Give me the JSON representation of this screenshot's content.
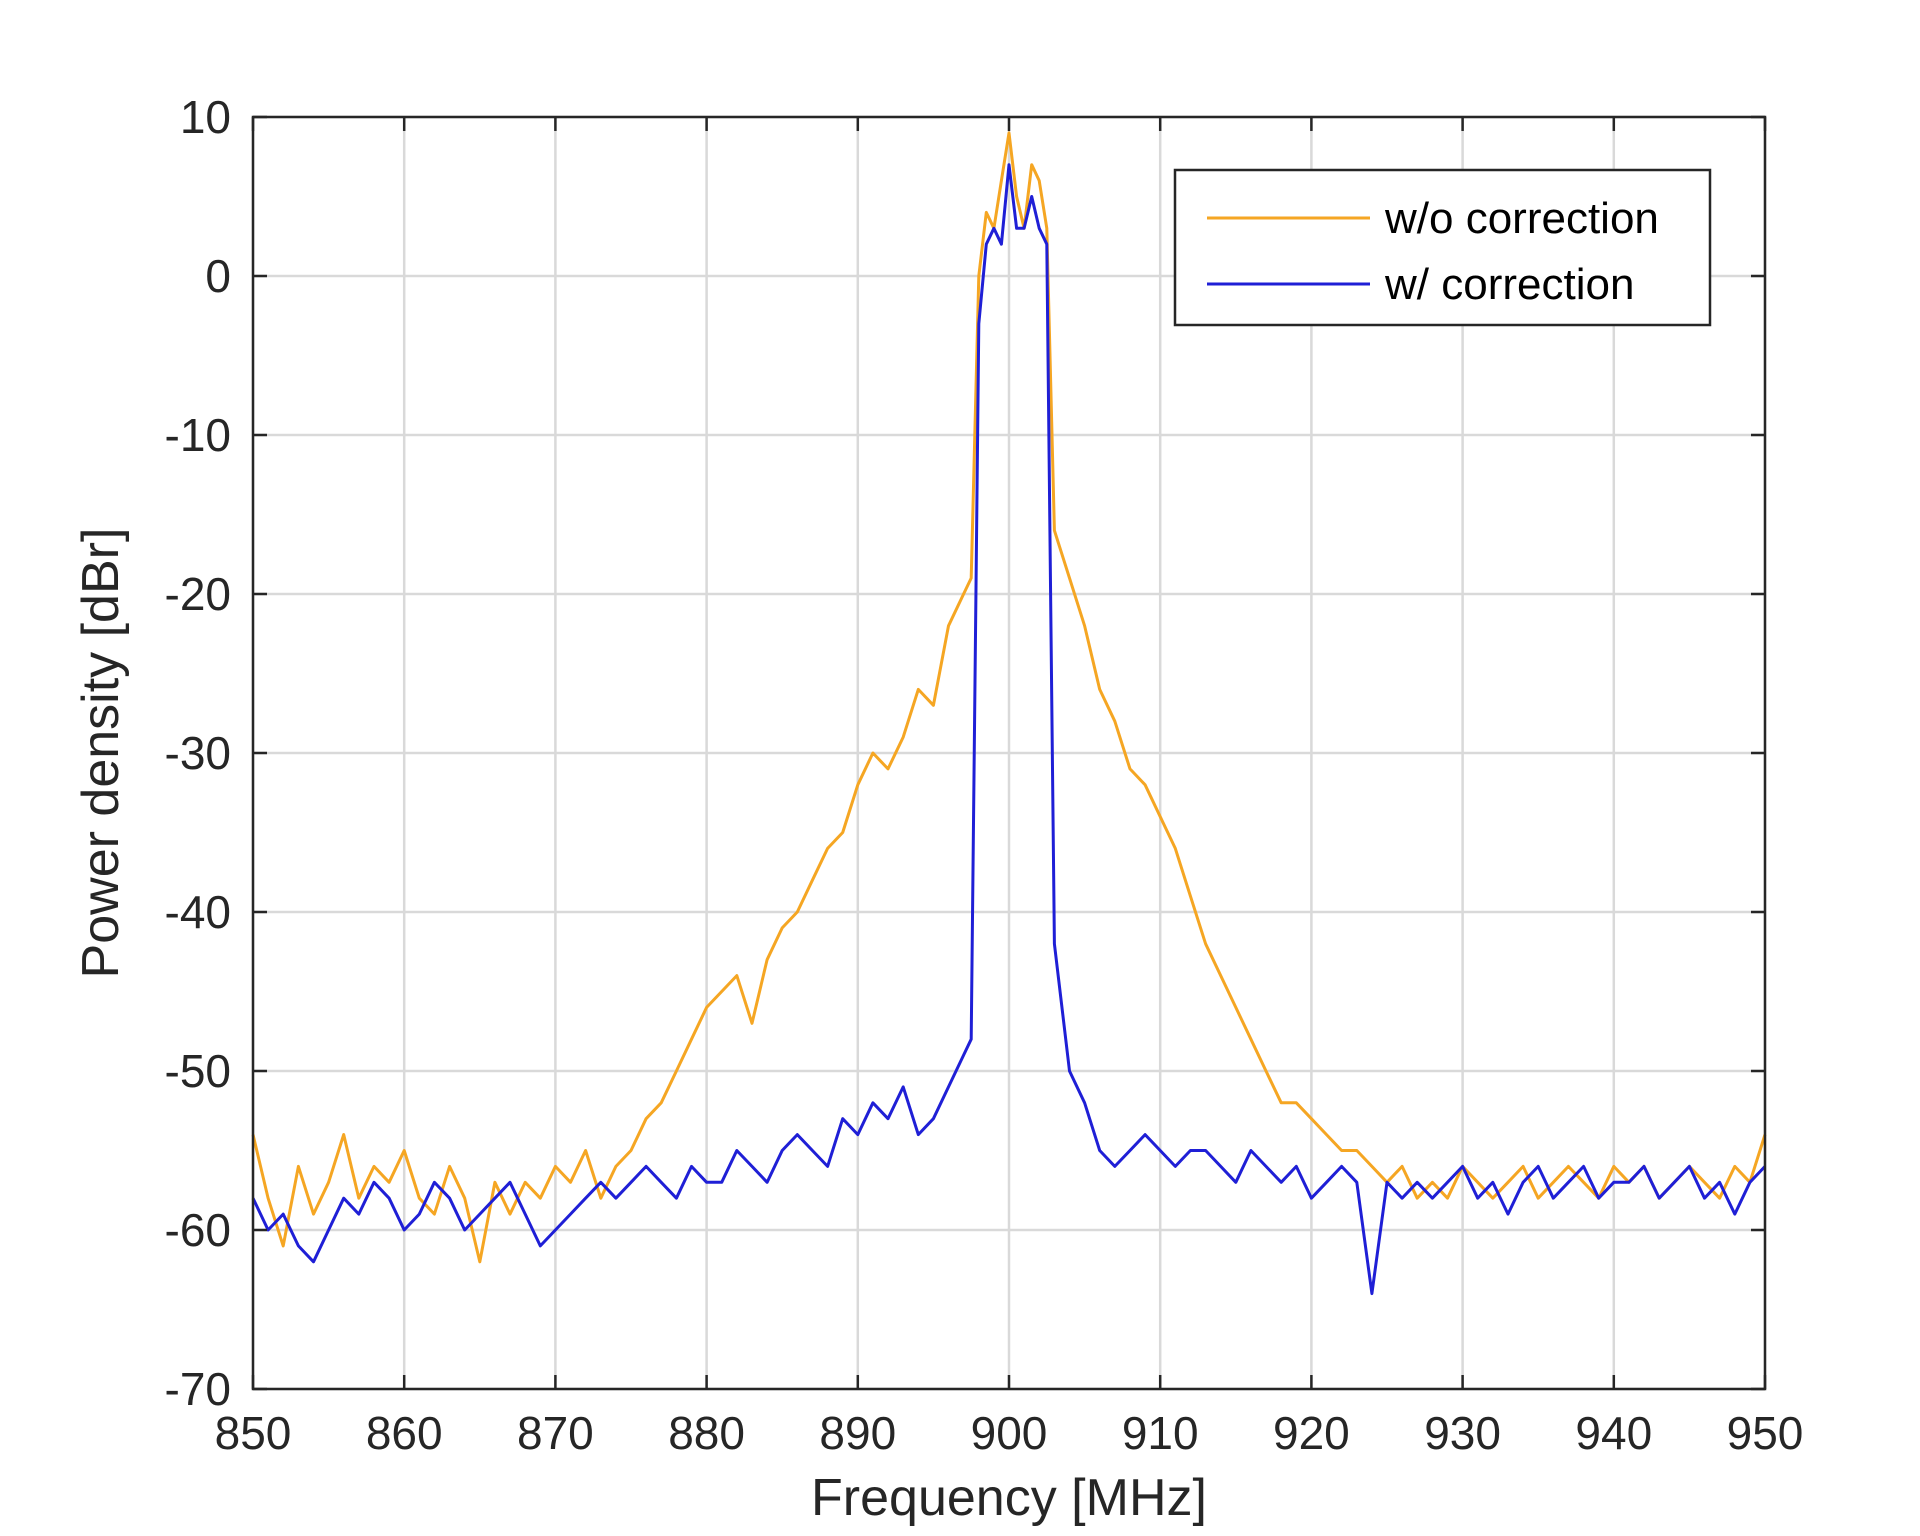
{
  "chart_data": {
    "type": "line",
    "title": "",
    "xlabel": "Frequency [MHz]",
    "ylabel": "Power density [dBr]",
    "xlim": [
      850,
      950
    ],
    "ylim": [
      -70,
      10
    ],
    "x_ticks": [
      850,
      860,
      870,
      880,
      890,
      900,
      910,
      920,
      930,
      940,
      950
    ],
    "y_ticks": [
      10,
      0,
      -10,
      -20,
      -30,
      -40,
      -50,
      -60,
      -70
    ],
    "grid": true,
    "legend_position": "top-right",
    "series": [
      {
        "name": "w/o correction",
        "color": "#F5A623",
        "x": [
          850,
          851,
          852,
          853,
          854,
          855,
          856,
          857,
          858,
          859,
          860,
          861,
          862,
          863,
          864,
          865,
          866,
          867,
          868,
          869,
          870,
          871,
          872,
          873,
          874,
          875,
          876,
          877,
          878,
          879,
          880,
          881,
          882,
          883,
          884,
          885,
          886,
          887,
          888,
          889,
          890,
          891,
          892,
          893,
          894,
          895,
          896,
          897,
          897.5,
          898,
          898.5,
          899,
          899.5,
          900,
          900.5,
          901,
          901.5,
          902,
          902.5,
          903,
          904,
          905,
          906,
          907,
          908,
          909,
          910,
          911,
          912,
          913,
          914,
          915,
          916,
          917,
          918,
          919,
          920,
          921,
          922,
          923,
          924,
          925,
          926,
          927,
          928,
          929,
          930,
          931,
          932,
          933,
          934,
          935,
          936,
          937,
          938,
          939,
          940,
          941,
          942,
          943,
          944,
          945,
          946,
          947,
          948,
          949,
          950
        ],
        "values": [
          -54,
          -58,
          -61,
          -56,
          -59,
          -57,
          -54,
          -58,
          -56,
          -57,
          -55,
          -58,
          -59,
          -56,
          -58,
          -62,
          -57,
          -59,
          -57,
          -58,
          -56,
          -57,
          -55,
          -58,
          -56,
          -55,
          -53,
          -52,
          -50,
          -48,
          -46,
          -45,
          -44,
          -47,
          -43,
          -41,
          -40,
          -38,
          -36,
          -35,
          -32,
          -30,
          -31,
          -29,
          -26,
          -27,
          -22,
          -20,
          -19,
          0,
          4,
          3,
          6,
          9,
          5,
          3,
          7,
          6,
          3,
          -16,
          -19,
          -22,
          -26,
          -28,
          -31,
          -32,
          -34,
          -36,
          -39,
          -42,
          -44,
          -46,
          -48,
          -50,
          -52,
          -52,
          -53,
          -54,
          -55,
          -55,
          -56,
          -57,
          -56,
          -58,
          -57,
          -58,
          -56,
          -57,
          -58,
          -57,
          -56,
          -58,
          -57,
          -56,
          -57,
          -58,
          -56,
          -57,
          -56,
          -58,
          -57,
          -56,
          -57,
          -58,
          -56,
          -57,
          -54
        ]
      },
      {
        "name": "w/ correction",
        "color": "#1F1FD6",
        "x": [
          850,
          851,
          852,
          853,
          854,
          855,
          856,
          857,
          858,
          859,
          860,
          861,
          862,
          863,
          864,
          865,
          866,
          867,
          868,
          869,
          870,
          871,
          872,
          873,
          874,
          875,
          876,
          877,
          878,
          879,
          880,
          881,
          882,
          883,
          884,
          885,
          886,
          887,
          888,
          889,
          890,
          891,
          892,
          893,
          894,
          895,
          896,
          897,
          897.5,
          898,
          898.5,
          899,
          899.5,
          900,
          900.5,
          901,
          901.5,
          902,
          902.5,
          903,
          904,
          905,
          906,
          907,
          908,
          909,
          910,
          911,
          912,
          913,
          914,
          915,
          916,
          917,
          918,
          919,
          920,
          921,
          922,
          923,
          924,
          925,
          926,
          927,
          928,
          929,
          930,
          931,
          932,
          933,
          934,
          935,
          936,
          937,
          938,
          939,
          940,
          941,
          942,
          943,
          944,
          945,
          946,
          947,
          948,
          949,
          950
        ],
        "values": [
          -58,
          -60,
          -59,
          -61,
          -62,
          -60,
          -58,
          -59,
          -57,
          -58,
          -60,
          -59,
          -57,
          -58,
          -60,
          -59,
          -58,
          -57,
          -59,
          -61,
          -60,
          -59,
          -58,
          -57,
          -58,
          -57,
          -56,
          -57,
          -58,
          -56,
          -57,
          -57,
          -55,
          -56,
          -57,
          -55,
          -54,
          -55,
          -56,
          -53,
          -54,
          -52,
          -53,
          -51,
          -54,
          -53,
          -51,
          -49,
          -48,
          -3,
          2,
          3,
          2,
          7,
          3,
          3,
          5,
          3,
          2,
          -42,
          -50,
          -52,
          -55,
          -56,
          -55,
          -54,
          -55,
          -56,
          -55,
          -55,
          -56,
          -57,
          -55,
          -56,
          -57,
          -56,
          -58,
          -57,
          -56,
          -57,
          -64,
          -57,
          -58,
          -57,
          -58,
          -57,
          -56,
          -58,
          -57,
          -59,
          -57,
          -56,
          -58,
          -57,
          -56,
          -58,
          -57,
          -57,
          -56,
          -58,
          -57,
          -56,
          -58,
          -57,
          -59,
          -57,
          -56
        ]
      }
    ]
  }
}
